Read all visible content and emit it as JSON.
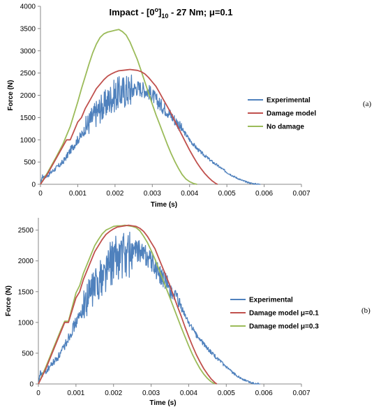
{
  "chart_data": [
    {
      "type": "line",
      "panel_label": "(a)",
      "title_parts": {
        "prefix": "Impact - [0",
        "sup": "o",
        "mid": "]",
        "sub": "10",
        "suffix": " - 27 Nm; μ=0.1"
      },
      "title": "Impact - [0o]10 - 27 Nm; μ=0.1",
      "xlabel": "Time (s)",
      "ylabel": "Force (N)",
      "xlim": [
        0,
        0.007
      ],
      "ylim": [
        0,
        4000
      ],
      "xticks": [
        "0",
        "0.001",
        "0.002",
        "0.003",
        "0.004",
        "0.005",
        "0.006",
        "0.007"
      ],
      "yticks": [
        "0",
        "500",
        "1000",
        "1500",
        "2000",
        "2500",
        "3000",
        "3500",
        "4000"
      ],
      "grid": false,
      "legend_position": "right",
      "series": [
        {
          "name": "Experimental",
          "color": "#4f81bd",
          "noisy": true,
          "x": [
            0,
            5e-05,
            0.0001,
            0.0002,
            0.0003,
            0.0004,
            0.0005,
            0.0006,
            0.0007,
            0.0008,
            0.0009,
            0.001,
            0.0011,
            0.0012,
            0.0013,
            0.0014,
            0.0015,
            0.0016,
            0.0017,
            0.0018,
            0.0019,
            0.002,
            0.0021,
            0.0022,
            0.0023,
            0.0024,
            0.0025,
            0.0026,
            0.0027,
            0.0028,
            0.0029,
            0.003,
            0.0031,
            0.0032,
            0.0033,
            0.0034,
            0.0035,
            0.0036,
            0.0037,
            0.0038,
            0.0039,
            0.004,
            0.0041,
            0.0042,
            0.0043,
            0.0044,
            0.0045,
            0.0046,
            0.0047,
            0.0048,
            0.0049,
            0.005,
            0.0051,
            0.0052,
            0.0053,
            0.0054,
            0.0055,
            0.0056,
            0.0057,
            0.0058,
            0.0059
          ],
          "y": [
            0,
            180,
            150,
            200,
            280,
            350,
            420,
            500,
            620,
            760,
            880,
            1000,
            1100,
            1250,
            1380,
            1500,
            1600,
            1700,
            1750,
            1850,
            1950,
            2000,
            2050,
            2080,
            2100,
            2120,
            2150,
            2170,
            2150,
            2120,
            2080,
            2000,
            1900,
            1800,
            1720,
            1650,
            1550,
            1450,
            1350,
            1230,
            1120,
            1000,
            900,
            800,
            720,
            650,
            580,
            510,
            450,
            390,
            330,
            270,
            220,
            170,
            130,
            90,
            60,
            35,
            15,
            5,
            0
          ]
        },
        {
          "name": "Damage model",
          "color": "#c0504d",
          "noisy": false,
          "x": [
            0,
            0.0002,
            0.0004,
            0.0006,
            0.0007,
            0.0008,
            0.0009,
            0.001,
            0.0011,
            0.0012,
            0.0013,
            0.0014,
            0.0015,
            0.0016,
            0.0017,
            0.0018,
            0.0019,
            0.002,
            0.0021,
            0.0022,
            0.0023,
            0.0024,
            0.0025,
            0.0026,
            0.0027,
            0.0028,
            0.0029,
            0.003,
            0.0031,
            0.0032,
            0.0033,
            0.0034,
            0.0035,
            0.0036,
            0.0037,
            0.0038,
            0.0039,
            0.004,
            0.0041,
            0.0042,
            0.0043,
            0.0044,
            0.0045,
            0.0046,
            0.0047,
            0.00475
          ],
          "y": [
            0,
            250,
            550,
            850,
            1000,
            1000,
            1200,
            1400,
            1500,
            1700,
            1850,
            2000,
            2150,
            2250,
            2350,
            2430,
            2480,
            2520,
            2550,
            2560,
            2570,
            2580,
            2570,
            2560,
            2530,
            2480,
            2400,
            2300,
            2200,
            2050,
            1900,
            1750,
            1600,
            1430,
            1260,
            1100,
            930,
            770,
            620,
            480,
            360,
            250,
            160,
            80,
            20,
            0
          ]
        },
        {
          "name": "No damage",
          "color": "#9bbb59",
          "noisy": false,
          "x": [
            0,
            0.0002,
            0.0004,
            0.0006,
            0.0008,
            0.001,
            0.0011,
            0.0012,
            0.0013,
            0.0014,
            0.0015,
            0.0016,
            0.0017,
            0.0018,
            0.0019,
            0.002,
            0.0021,
            0.0022,
            0.0023,
            0.0024,
            0.0025,
            0.0026,
            0.0027,
            0.0028,
            0.0029,
            0.003,
            0.0031,
            0.0032,
            0.0033,
            0.0034,
            0.0035,
            0.0036,
            0.0037,
            0.0038,
            0.0039,
            0.004,
            0.0041,
            0.0042
          ],
          "y": [
            0,
            280,
            580,
            900,
            1300,
            1850,
            2150,
            2420,
            2700,
            2950,
            3150,
            3300,
            3380,
            3420,
            3440,
            3460,
            3480,
            3430,
            3350,
            3200,
            3000,
            2800,
            2550,
            2300,
            2050,
            1800,
            1560,
            1340,
            1120,
            900,
            700,
            520,
            360,
            220,
            120,
            60,
            20,
            0
          ]
        }
      ]
    },
    {
      "type": "line",
      "panel_label": "(b)",
      "title": "",
      "xlabel": "Time (s)",
      "ylabel": "Force (N)",
      "xlim": [
        0,
        0.007
      ],
      "ylim": [
        0,
        2700
      ],
      "xticks": [
        "0",
        "0.001",
        "0.002",
        "0.003",
        "0.004",
        "0.005",
        "0.006",
        "0.007"
      ],
      "yticks": [
        "0",
        "500",
        "1000",
        "1500",
        "2000",
        "2500"
      ],
      "grid": false,
      "legend_position": "right",
      "series": [
        {
          "name": "Experimental",
          "color": "#4f81bd",
          "noisy": true,
          "x": [
            0,
            5e-05,
            0.0001,
            0.0002,
            0.0003,
            0.0004,
            0.0005,
            0.0006,
            0.0007,
            0.0008,
            0.0009,
            0.001,
            0.0011,
            0.0012,
            0.0013,
            0.0014,
            0.0015,
            0.0016,
            0.0017,
            0.0018,
            0.0019,
            0.002,
            0.0021,
            0.0022,
            0.0023,
            0.0024,
            0.0025,
            0.0026,
            0.0027,
            0.0028,
            0.0029,
            0.003,
            0.0031,
            0.0032,
            0.0033,
            0.0034,
            0.0035,
            0.0036,
            0.0037,
            0.0038,
            0.0039,
            0.004,
            0.0041,
            0.0042,
            0.0043,
            0.0044,
            0.0045,
            0.0046,
            0.0047,
            0.0048,
            0.0049,
            0.005,
            0.0051,
            0.0052,
            0.0053,
            0.0054,
            0.0055,
            0.0056,
            0.0057,
            0.0058,
            0.0059
          ],
          "y": [
            0,
            180,
            150,
            200,
            280,
            350,
            420,
            500,
            620,
            760,
            880,
            1000,
            1100,
            1250,
            1380,
            1500,
            1600,
            1700,
            1750,
            1850,
            1950,
            2000,
            2050,
            2080,
            2100,
            2120,
            2150,
            2170,
            2150,
            2120,
            2080,
            2000,
            1900,
            1800,
            1720,
            1650,
            1550,
            1450,
            1350,
            1230,
            1120,
            1000,
            900,
            800,
            720,
            650,
            580,
            510,
            450,
            390,
            330,
            270,
            220,
            170,
            130,
            90,
            60,
            35,
            15,
            5,
            0
          ]
        },
        {
          "name": "Damage model μ=0.1",
          "color": "#c0504d",
          "noisy": false,
          "x": [
            0,
            0.0002,
            0.0004,
            0.0006,
            0.0007,
            0.0008,
            0.0009,
            0.001,
            0.0011,
            0.0012,
            0.0013,
            0.0014,
            0.0015,
            0.0016,
            0.0017,
            0.0018,
            0.0019,
            0.002,
            0.0021,
            0.0022,
            0.0023,
            0.0024,
            0.0025,
            0.0026,
            0.0027,
            0.0028,
            0.0029,
            0.003,
            0.0031,
            0.0032,
            0.0033,
            0.0034,
            0.0035,
            0.0036,
            0.0037,
            0.0038,
            0.0039,
            0.004,
            0.0041,
            0.0042,
            0.0043,
            0.0044,
            0.0045,
            0.0046,
            0.0047,
            0.00475
          ],
          "y": [
            0,
            250,
            550,
            850,
            1000,
            1000,
            1200,
            1400,
            1500,
            1700,
            1850,
            2000,
            2150,
            2250,
            2350,
            2430,
            2480,
            2520,
            2550,
            2560,
            2570,
            2580,
            2570,
            2560,
            2530,
            2480,
            2400,
            2300,
            2200,
            2050,
            1900,
            1750,
            1600,
            1430,
            1260,
            1100,
            930,
            770,
            620,
            480,
            360,
            250,
            160,
            80,
            20,
            0
          ]
        },
        {
          "name": "Damage model μ=0.3",
          "color": "#9bbb59",
          "noisy": false,
          "x": [
            0,
            0.0002,
            0.0004,
            0.0006,
            0.0007,
            0.0008,
            0.0009,
            0.001,
            0.0011,
            0.0012,
            0.0013,
            0.0014,
            0.0015,
            0.0016,
            0.0017,
            0.0018,
            0.0019,
            0.002,
            0.0021,
            0.0022,
            0.0023,
            0.0024,
            0.0025,
            0.0026,
            0.0027,
            0.0028,
            0.0029,
            0.003,
            0.0031,
            0.0032,
            0.0033,
            0.0034,
            0.0035,
            0.0036,
            0.0037,
            0.0038,
            0.0039,
            0.004,
            0.0041,
            0.0042,
            0.0043,
            0.0044,
            0.0045,
            0.0046,
            0.0047
          ],
          "y": [
            0,
            280,
            580,
            880,
            1020,
            1020,
            1250,
            1480,
            1600,
            1800,
            1950,
            2100,
            2250,
            2350,
            2440,
            2500,
            2530,
            2560,
            2570,
            2570,
            2580,
            2570,
            2560,
            2540,
            2490,
            2400,
            2300,
            2170,
            2030,
            1880,
            1720,
            1560,
            1400,
            1240,
            1080,
            920,
            770,
            620,
            480,
            360,
            250,
            160,
            90,
            35,
            0
          ]
        }
      ]
    }
  ]
}
